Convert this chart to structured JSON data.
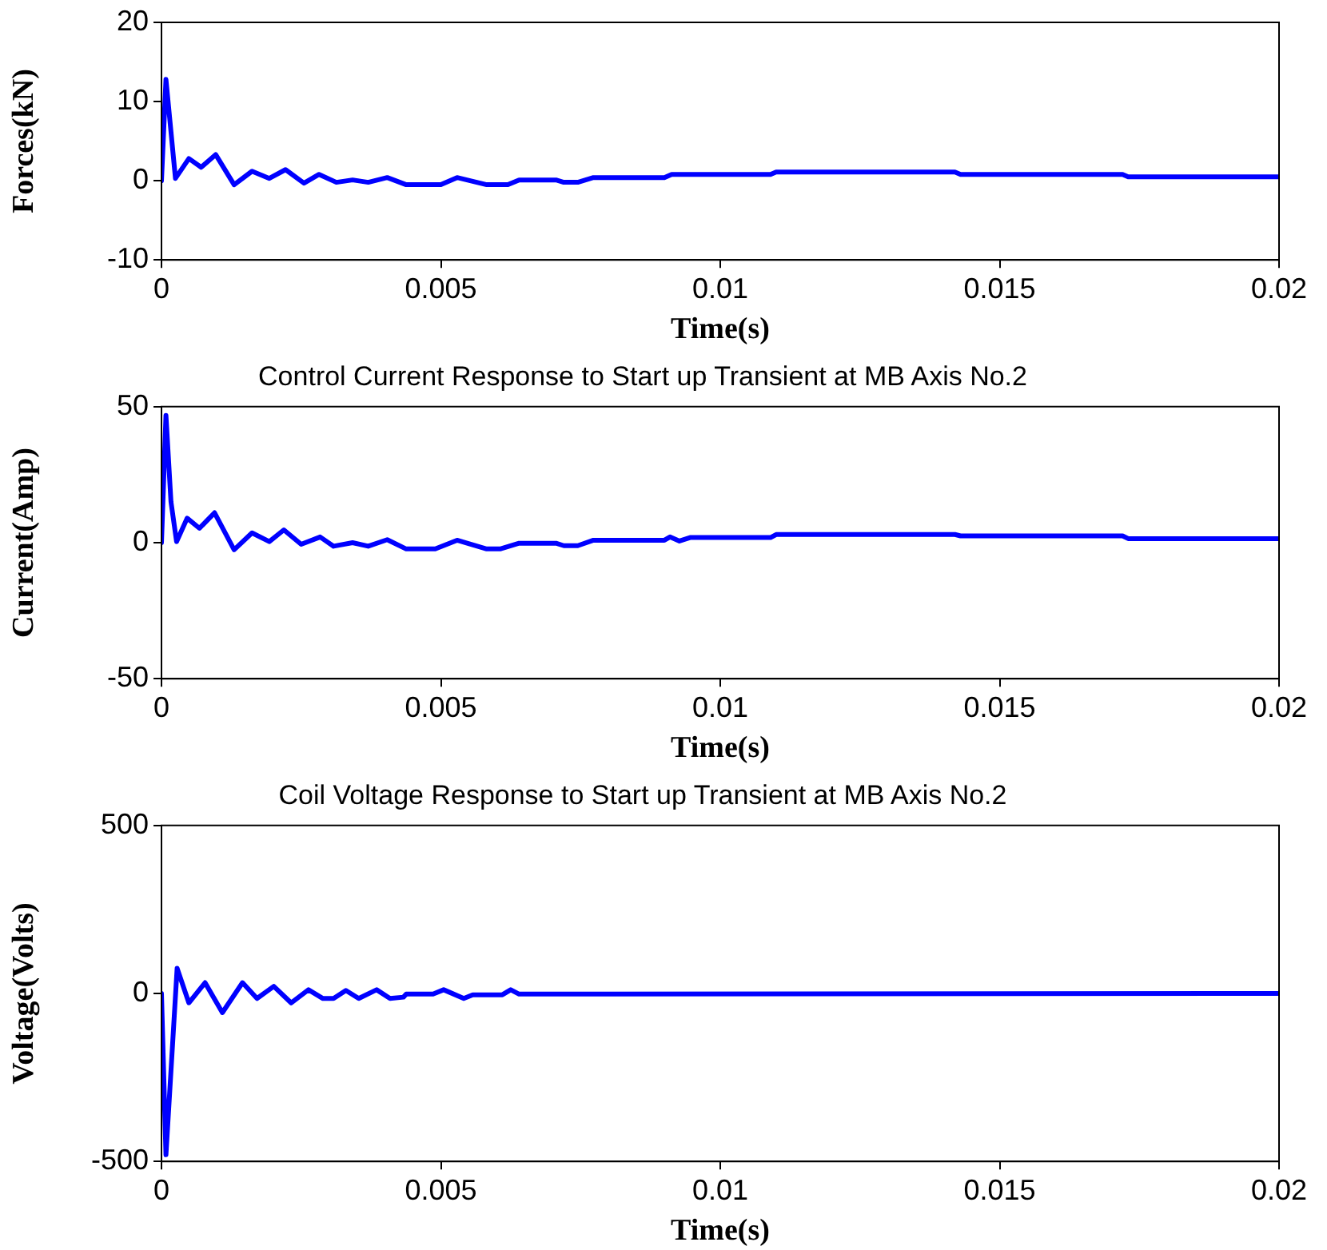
{
  "chart_data": [
    {
      "type": "line",
      "xlabel": "Time(s)",
      "ylabel": "Forces(kN)",
      "xlim": [
        0,
        0.02
      ],
      "xticks": [
        0,
        0.005,
        0.01,
        0.015,
        0.02
      ],
      "ylim": [
        -10,
        20
      ],
      "yticks": [
        -10,
        0,
        10,
        20
      ],
      "grid": false,
      "legend": false,
      "marker": "none",
      "line_style": "solid",
      "series": [
        {
          "color": "#0000ff",
          "x": [
            0,
            8e-05,
            0.00025,
            0.00049,
            0.00071,
            0.00097,
            0.0013,
            0.00162,
            0.00193,
            0.00222,
            0.00255,
            0.00282,
            0.00313,
            0.00342,
            0.0037,
            0.00404,
            0.00438,
            0.005,
            0.00529,
            0.00582,
            0.0062,
            0.0064,
            0.00706,
            0.0072,
            0.00745,
            0.00773,
            0.009,
            0.00913,
            0.0109,
            0.011,
            0.0142,
            0.0143,
            0.0172,
            0.0173,
            0.02
          ],
          "values": [
            0,
            12.8,
            0.3,
            2.8,
            1.7,
            3.3,
            -0.5,
            1.2,
            0.3,
            1.4,
            -0.3,
            0.8,
            -0.2,
            0.1,
            -0.2,
            0.4,
            -0.5,
            -0.5,
            0.4,
            -0.5,
            -0.5,
            0.1,
            0.1,
            -0.2,
            -0.2,
            0.4,
            0.4,
            0.8,
            0.8,
            1.1,
            1.1,
            0.8,
            0.8,
            0.5,
            0.5
          ]
        }
      ]
    },
    {
      "type": "line",
      "title": "Control Current Response to Start up Transient at MB Axis No.2",
      "xlabel": "Time(s)",
      "ylabel": "Current(Amp)",
      "xlim": [
        0,
        0.02
      ],
      "xticks": [
        0,
        0.005,
        0.01,
        0.015,
        0.02
      ],
      "ylim": [
        -50,
        50
      ],
      "yticks": [
        -50,
        0,
        50
      ],
      "grid": false,
      "legend": false,
      "marker": "none",
      "line_style": "solid",
      "series": [
        {
          "color": "#0000ff",
          "x": [
            0,
            8e-05,
            0.00017,
            0.00027,
            0.00046,
            0.00068,
            0.00095,
            0.0013,
            0.00162,
            0.00193,
            0.00219,
            0.0025,
            0.00284,
            0.00308,
            0.00342,
            0.0037,
            0.00404,
            0.00438,
            0.0049,
            0.00529,
            0.00582,
            0.00606,
            0.0064,
            0.00706,
            0.0072,
            0.00745,
            0.00773,
            0.009,
            0.0091,
            0.00927,
            0.00946,
            0.0109,
            0.011,
            0.0142,
            0.0143,
            0.0172,
            0.0173,
            0.02
          ],
          "values": [
            0,
            46.8,
            15,
            0.4,
            9,
            5.3,
            11,
            -2.6,
            3.6,
            0.4,
            4.7,
            -0.6,
            2.1,
            -1.3,
            0,
            -1.3,
            1.1,
            -2.3,
            -2.3,
            0.9,
            -2.3,
            -2.3,
            -0.2,
            -0.2,
            -1.1,
            -1.1,
            0.9,
            0.9,
            2.1,
            0.6,
            1.9,
            1.9,
            3,
            3,
            2.5,
            2.5,
            1.5,
            1.5
          ]
        }
      ]
    },
    {
      "type": "line",
      "title": "Coil Voltage Response to Start up Transient at MB Axis No.2",
      "xlabel": "Time(s)",
      "ylabel": "Voltage(Volts)",
      "xlim": [
        0,
        0.02
      ],
      "xticks": [
        0,
        0.005,
        0.01,
        0.015,
        0.02
      ],
      "ylim": [
        -500,
        500
      ],
      "yticks": [
        -500,
        0,
        500
      ],
      "grid": false,
      "legend": false,
      "marker": "none",
      "line_style": "solid",
      "series": [
        {
          "color": "#0000ff",
          "x": [
            0,
            8e-05,
            0.00028,
            0.00049,
            0.00078,
            0.00109,
            0.00145,
            0.00171,
            0.00201,
            0.00232,
            0.00263,
            0.00289,
            0.00308,
            0.0033,
            0.00353,
            0.00385,
            0.00409,
            0.00433,
            0.00438,
            0.00486,
            0.00505,
            0.00541,
            0.00557,
            0.0061,
            0.00625,
            0.0064,
            0.02
          ],
          "values": [
            0,
            -480,
            75,
            -28,
            32,
            -57,
            32,
            -15,
            21,
            -28,
            11,
            -15,
            -15,
            9,
            -15,
            11,
            -15,
            -11,
            -2,
            -2,
            11,
            -15,
            -4,
            -4,
            11,
            -2,
            0
          ]
        }
      ]
    }
  ]
}
